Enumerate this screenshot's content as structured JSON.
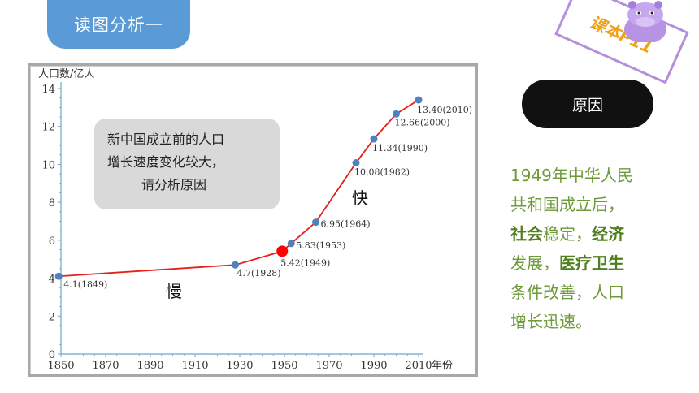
{
  "title_tab": "读图分析一",
  "book_badge": "课本P11",
  "reason_button": "原因",
  "callout": {
    "line1": "新中国成立前的人口",
    "line2": "增长速度变化较大，",
    "line3": "请分析原因"
  },
  "annotations": {
    "fast": "快",
    "slow": "慢"
  },
  "explanation": {
    "p1": "1949年中华人民",
    "p2": "共和国成立后，",
    "k1": "社会",
    "p3": "稳定，",
    "k2": "经济",
    "p4": "发展，",
    "k3": "医疗卫生",
    "p5": "条件改善，人口",
    "p6": "增长迅速。"
  },
  "colors": {
    "line": "#e8201c",
    "point": "#4f81bd",
    "highlight": "#ff0000",
    "tab": "#5a9ad6",
    "text_green": "#6e9a39"
  },
  "chart_data": {
    "type": "line",
    "ylabel": "人口数/亿人",
    "xlabel": "年份",
    "xlim": [
      1850,
      2010
    ],
    "ylim": [
      0,
      14
    ],
    "x_ticks": [
      1850,
      1870,
      1890,
      1910,
      1930,
      1950,
      1970,
      1990,
      2010
    ],
    "y_ticks": [
      0,
      2,
      4,
      6,
      8,
      10,
      12,
      14
    ],
    "points": [
      {
        "x": 1849,
        "y": 4.1,
        "label": "4.1(1849)"
      },
      {
        "x": 1928,
        "y": 4.7,
        "label": "4.7(1928)"
      },
      {
        "x": 1949,
        "y": 5.42,
        "label": "5.42(1949)",
        "highlight": true
      },
      {
        "x": 1953,
        "y": 5.83,
        "label": "5.83(1953)"
      },
      {
        "x": 1964,
        "y": 6.95,
        "label": "6.95(1964)"
      },
      {
        "x": 1982,
        "y": 10.08,
        "label": "10.08(1982)"
      },
      {
        "x": 1990,
        "y": 11.34,
        "label": "11.34(1990)"
      },
      {
        "x": 2000,
        "y": 12.66,
        "label": "12.66(2000)"
      },
      {
        "x": 2010,
        "y": 13.4,
        "label": "13.40(2010)"
      }
    ]
  }
}
